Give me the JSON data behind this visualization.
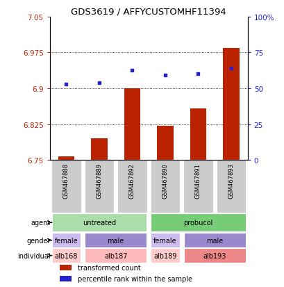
{
  "title": "GDS3619 / AFFYCUSTOMHF11394",
  "samples": [
    "GSM467888",
    "GSM467889",
    "GSM467892",
    "GSM467890",
    "GSM467891",
    "GSM467893"
  ],
  "bar_values": [
    6.758,
    6.795,
    6.9,
    6.822,
    6.858,
    6.985
  ],
  "bar_base": 6.75,
  "dot_values": [
    6.908,
    6.912,
    6.938,
    6.928,
    6.93,
    6.942
  ],
  "ylim": [
    6.75,
    7.05
  ],
  "y_ticks": [
    6.75,
    6.825,
    6.9,
    6.975,
    7.05
  ],
  "y_tick_labels": [
    "6.75",
    "6.825",
    "6.9",
    "6.975",
    "7.05"
  ],
  "y2_ticks_pct": [
    0,
    25,
    50,
    75,
    100
  ],
  "y2_tick_labels": [
    "0",
    "25",
    "50",
    "75",
    "100%"
  ],
  "bar_color": "#bb2200",
  "dot_color": "#2222cc",
  "grid_color": "#000000",
  "agent_row": {
    "label": "agent",
    "groups": [
      {
        "text": "untreated",
        "cols": [
          0,
          1,
          2
        ],
        "color": "#aaddaa"
      },
      {
        "text": "probucol",
        "cols": [
          3,
          4,
          5
        ],
        "color": "#77cc77"
      }
    ]
  },
  "gender_row": {
    "label": "gender",
    "groups": [
      {
        "text": "female",
        "cols": [
          0
        ],
        "color": "#ccbbee"
      },
      {
        "text": "male",
        "cols": [
          1,
          2
        ],
        "color": "#9988cc"
      },
      {
        "text": "female",
        "cols": [
          3
        ],
        "color": "#ccbbee"
      },
      {
        "text": "male",
        "cols": [
          4,
          5
        ],
        "color": "#9988cc"
      }
    ]
  },
  "individual_row": {
    "label": "individual",
    "groups": [
      {
        "text": "alb168",
        "cols": [
          0
        ],
        "color": "#ffcccc"
      },
      {
        "text": "alb187",
        "cols": [
          1,
          2
        ],
        "color": "#ffbbbb"
      },
      {
        "text": "alb189",
        "cols": [
          3
        ],
        "color": "#ffcccc"
      },
      {
        "text": "alb193",
        "cols": [
          4,
          5
        ],
        "color": "#ee8888"
      }
    ]
  },
  "legend_items": [
    {
      "label": "transformed count",
      "color": "#bb2200"
    },
    {
      "label": "percentile rank within the sample",
      "color": "#2222cc"
    }
  ],
  "sample_col_color": "#cccccc",
  "bar_width": 0.5
}
